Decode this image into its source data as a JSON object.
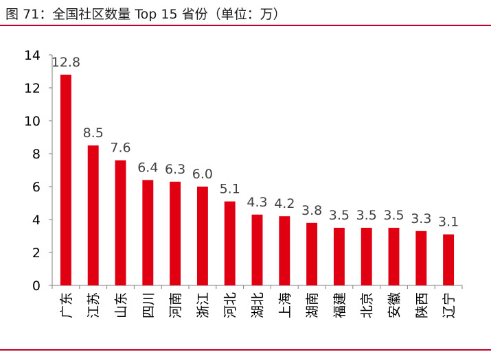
{
  "figure": {
    "title": "图 71：全国社区数量 Top 15 省份（单位：万）"
  },
  "chart_data": {
    "type": "bar",
    "title": "",
    "xlabel": "",
    "ylabel": "",
    "ylim": [
      0,
      14
    ],
    "yticks": [
      0,
      2,
      4,
      6,
      8,
      10,
      12,
      14
    ],
    "grid": false,
    "bar_color": "#e00012",
    "categories": [
      "广东",
      "江苏",
      "山东",
      "四川",
      "河南",
      "浙江",
      "河北",
      "湖北",
      "上海",
      "湖南",
      "福建",
      "北京",
      "安徽",
      "陕西",
      "辽宁"
    ],
    "values": [
      12.8,
      8.5,
      7.6,
      6.4,
      6.3,
      6.0,
      5.1,
      4.3,
      4.2,
      3.8,
      3.5,
      3.5,
      3.5,
      3.3,
      3.1
    ],
    "value_labels": [
      "12.8",
      "8.5",
      "7.6",
      "6.4",
      "6.3",
      "6.0",
      "5.1",
      "4.3",
      "4.2",
      "3.8",
      "3.5",
      "3.5",
      "3.5",
      "3.3",
      "3.1"
    ]
  }
}
